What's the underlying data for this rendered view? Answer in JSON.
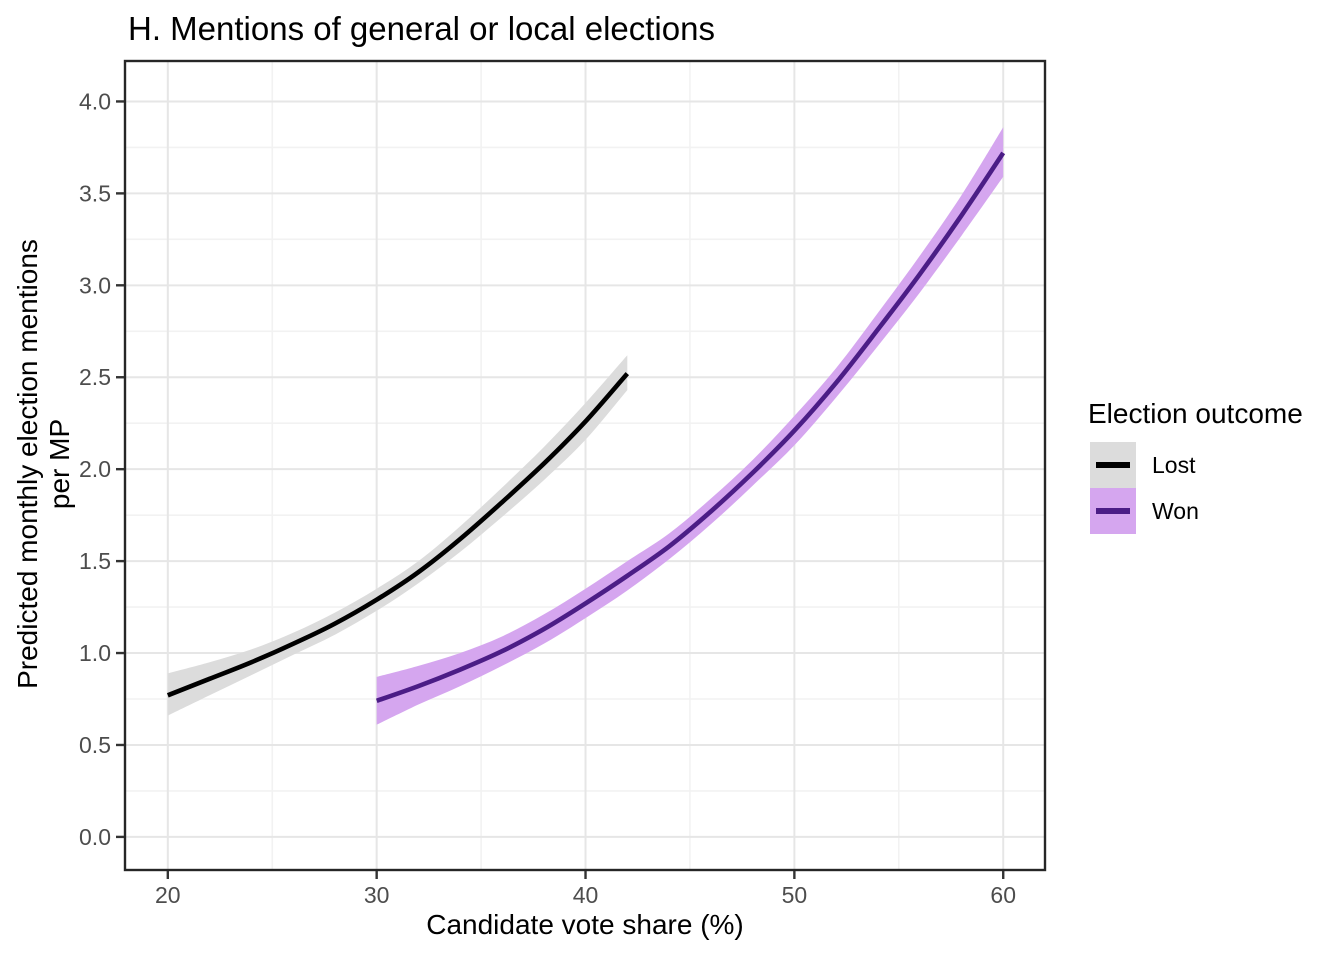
{
  "chart_data": {
    "type": "line",
    "title": "H. Mentions of general or local elections",
    "xlabel": "Candidate vote share (%)",
    "ylabel": "Predicted monthly election mentions\nper MP",
    "x_range": [
      17.95,
      62.0
    ],
    "y_range": [
      -0.18,
      4.22
    ],
    "grid": true,
    "x_ticks": [
      {
        "value": 20,
        "label": "20"
      },
      {
        "value": 30,
        "label": "30"
      },
      {
        "value": 40,
        "label": "40"
      },
      {
        "value": 50,
        "label": "50"
      },
      {
        "value": 60,
        "label": "60"
      }
    ],
    "y_ticks": [
      {
        "value": 0.0,
        "label": "0.0"
      },
      {
        "value": 0.5,
        "label": "0.5"
      },
      {
        "value": 1.0,
        "label": "1.0"
      },
      {
        "value": 1.5,
        "label": "1.5"
      },
      {
        "value": 2.0,
        "label": "2.0"
      },
      {
        "value": 2.5,
        "label": "2.5"
      },
      {
        "value": 3.0,
        "label": "3.0"
      },
      {
        "value": 3.5,
        "label": "3.5"
      },
      {
        "value": 4.0,
        "label": "4.0"
      }
    ],
    "x_minor": [
      25,
      35,
      45,
      55
    ],
    "y_minor": [
      0.25,
      0.75,
      1.25,
      1.75,
      2.25,
      2.75,
      3.25,
      3.75
    ],
    "legend": {
      "title": "Election outcome",
      "position": "right",
      "items": [
        {
          "label": "Lost"
        },
        {
          "label": "Won"
        }
      ]
    },
    "series": [
      {
        "name": "Lost",
        "line_color": "#000000",
        "band_color": "#DCDCDC",
        "x": [
          20,
          22,
          24,
          26,
          28,
          30,
          32,
          34,
          36,
          38,
          40,
          42
        ],
        "y": [
          0.77,
          0.86,
          0.95,
          1.05,
          1.16,
          1.29,
          1.44,
          1.62,
          1.82,
          2.03,
          2.26,
          2.52
        ],
        "ci_low": [
          0.66,
          0.77,
          0.88,
          0.99,
          1.1,
          1.23,
          1.38,
          1.55,
          1.74,
          1.94,
          2.16,
          2.43
        ],
        "ci_high": [
          0.89,
          0.95,
          1.02,
          1.11,
          1.22,
          1.35,
          1.5,
          1.69,
          1.9,
          2.12,
          2.36,
          2.62
        ]
      },
      {
        "name": "Won",
        "line_color": "#4B1D86",
        "band_color": "#D5A6EF",
        "x": [
          30,
          32,
          34,
          36,
          38,
          40,
          42,
          44,
          46,
          48,
          50,
          52,
          54,
          56,
          58,
          60
        ],
        "y": [
          0.74,
          0.82,
          0.91,
          1.01,
          1.13,
          1.27,
          1.42,
          1.58,
          1.77,
          1.98,
          2.21,
          2.47,
          2.76,
          3.06,
          3.38,
          3.72
        ],
        "ci_low": [
          0.61,
          0.72,
          0.82,
          0.93,
          1.05,
          1.19,
          1.34,
          1.51,
          1.7,
          1.91,
          2.13,
          2.39,
          2.67,
          2.96,
          3.27,
          3.59
        ],
        "ci_high": [
          0.87,
          0.93,
          1.0,
          1.09,
          1.21,
          1.35,
          1.5,
          1.65,
          1.84,
          2.05,
          2.29,
          2.55,
          2.85,
          3.16,
          3.49,
          3.86
        ]
      }
    ]
  }
}
